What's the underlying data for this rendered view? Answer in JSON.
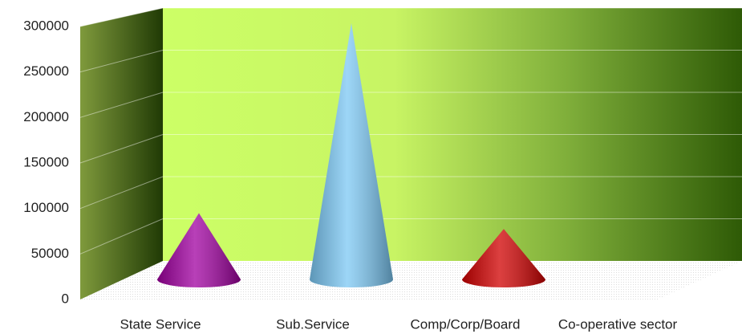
{
  "chart_data": {
    "type": "cone",
    "categories": [
      "State Service",
      "Sub.Service",
      "Comp/Corp/Board",
      "Co-operative sector"
    ],
    "values": [
      75000,
      290000,
      57000,
      0
    ],
    "colors": [
      "#a000a0",
      "#7cc8f4",
      "#d00000",
      "#3366cc"
    ],
    "ylim": [
      0,
      300000
    ],
    "yticks": [
      0,
      50000,
      100000,
      150000,
      200000,
      250000,
      300000
    ],
    "grid": true
  }
}
